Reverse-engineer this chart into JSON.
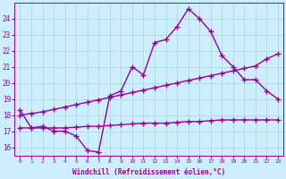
{
  "line1_x": [
    0,
    1,
    2,
    3,
    4,
    5,
    6,
    7,
    8,
    9,
    10,
    11,
    12,
    13,
    14,
    15,
    16,
    17,
    18,
    19,
    20,
    21,
    22,
    23
  ],
  "line1_y": [
    18.3,
    17.2,
    17.3,
    17.0,
    17.0,
    16.7,
    15.8,
    15.7,
    19.2,
    19.5,
    21.0,
    20.5,
    22.5,
    22.7,
    23.5,
    24.6,
    24.0,
    23.2,
    21.7,
    21.0,
    20.2,
    20.2,
    19.5,
    19.0
  ],
  "line2_x": [
    0,
    1,
    2,
    3,
    4,
    5,
    6,
    7,
    8,
    9,
    10,
    11,
    12,
    13,
    14,
    15,
    16,
    17,
    18,
    19,
    20,
    21,
    22,
    23
  ],
  "line2_y": [
    18.0,
    18.1,
    18.2,
    18.35,
    18.5,
    18.65,
    18.8,
    18.95,
    19.1,
    19.25,
    19.4,
    19.55,
    19.7,
    19.85,
    20.0,
    20.15,
    20.3,
    20.45,
    20.6,
    20.75,
    20.9,
    21.05,
    21.5,
    21.8
  ],
  "line3_x": [
    0,
    1,
    2,
    3,
    4,
    5,
    6,
    7,
    8,
    9,
    10,
    11,
    12,
    13,
    14,
    15,
    16,
    17,
    18,
    19,
    20,
    21,
    22,
    23
  ],
  "line3_y": [
    17.2,
    17.2,
    17.2,
    17.2,
    17.2,
    17.25,
    17.3,
    17.3,
    17.35,
    17.4,
    17.45,
    17.5,
    17.5,
    17.5,
    17.55,
    17.6,
    17.6,
    17.65,
    17.7,
    17.7,
    17.7,
    17.7,
    17.7,
    17.7
  ],
  "line_color": "#990099",
  "bg_color": "#cceeff",
  "grid_color": "#aad4d4",
  "xlabel": "Windchill (Refroidissement éolien,°C)",
  "xlim": [
    -0.5,
    23.5
  ],
  "ylim": [
    15.5,
    25.0
  ],
  "yticks": [
    16,
    17,
    18,
    19,
    20,
    21,
    22,
    23,
    24
  ],
  "xticks": [
    0,
    1,
    2,
    3,
    4,
    5,
    6,
    7,
    8,
    9,
    10,
    11,
    12,
    13,
    14,
    15,
    16,
    17,
    18,
    19,
    20,
    21,
    22,
    23
  ]
}
